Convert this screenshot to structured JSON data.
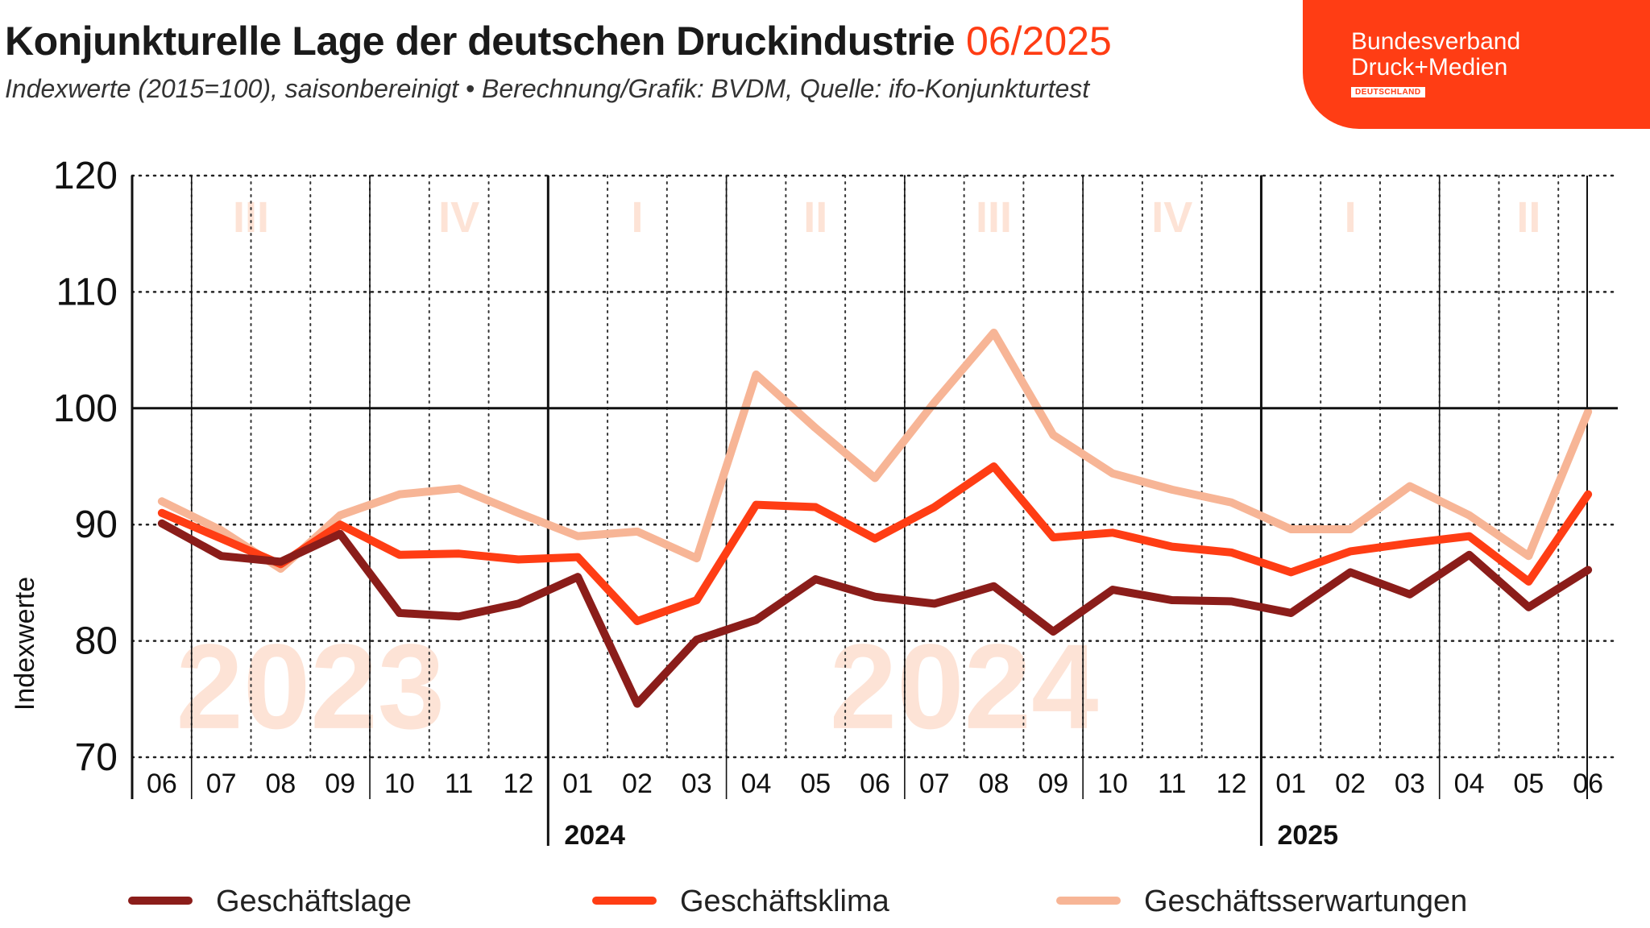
{
  "header": {
    "title": "Konjunkturelle Lage der deutschen Druckindustrie",
    "date": "06/2025",
    "subtitle": "Indexwerte (2015=100), saisonbereinigt • Berechnung/Grafik: BVDM, Quelle: ifo-Konjunkturtest"
  },
  "brand": {
    "line1": "Bundesverband",
    "line2": "Druck+Medien",
    "sub": "DEUTSCHLAND",
    "color": "#ff3d14"
  },
  "chart_data": {
    "type": "line",
    "ylabel": "Indexwerte",
    "ylim": [
      70,
      120
    ],
    "yticks": [
      70,
      80,
      90,
      100,
      110,
      120
    ],
    "reference_line": 100,
    "categories": [
      "06",
      "07",
      "08",
      "09",
      "10",
      "11",
      "12",
      "01",
      "02",
      "03",
      "04",
      "05",
      "06",
      "07",
      "08",
      "09",
      "10",
      "11",
      "12",
      "01",
      "02",
      "03",
      "04",
      "05",
      "06"
    ],
    "year_labels": [
      {
        "label": "2024",
        "start_index": 7
      },
      {
        "label": "2025",
        "start_index": 19
      }
    ],
    "watermark_years": [
      {
        "label": "2023",
        "center_index": 2
      },
      {
        "label": "2024",
        "center_index": 13
      }
    ],
    "quarters": [
      {
        "label": "III",
        "from": 0,
        "to": 3
      },
      {
        "label": "IV",
        "from": 4,
        "to": 6
      },
      {
        "label": "I",
        "from": 7,
        "to": 9
      },
      {
        "label": "II",
        "from": 10,
        "to": 12
      },
      {
        "label": "III",
        "from": 13,
        "to": 15
      },
      {
        "label": "IV",
        "from": 16,
        "to": 18
      },
      {
        "label": "I",
        "from": 19,
        "to": 21
      },
      {
        "label": "II",
        "from": 22,
        "to": 24
      }
    ],
    "grid": true,
    "legend_position": "bottom",
    "series": [
      {
        "name": "Geschäftsserwartungen",
        "color": "#f7b596",
        "values": [
          92,
          89.5,
          86.2,
          90.8,
          92.6,
          93.1,
          91,
          89,
          89.4,
          87.1,
          102.9,
          98.3,
          94,
          100.5,
          106.5,
          97.7,
          94.4,
          93,
          91.9,
          89.6,
          89.6,
          93.3,
          90.8,
          87.3,
          99.7
        ]
      },
      {
        "name": "Geschäftsklima",
        "color": "#ff3d14",
        "values": [
          91,
          88.8,
          86.6,
          90,
          87.4,
          87.5,
          87,
          87.2,
          81.7,
          83.5,
          91.7,
          91.5,
          88.8,
          91.5,
          95,
          88.9,
          89.3,
          88.1,
          87.6,
          85.9,
          87.7,
          88.4,
          89,
          85.1,
          92.6
        ]
      },
      {
        "name": "Geschäftslage",
        "color": "#8b1d1a",
        "values": [
          90.1,
          87.3,
          86.8,
          89.2,
          82.4,
          82.1,
          83.2,
          85.5,
          74.6,
          80.1,
          81.8,
          85.3,
          83.8,
          83.2,
          84.7,
          80.8,
          84.4,
          83.5,
          83.4,
          82.4,
          85.9,
          84,
          87.4,
          82.9,
          86.1
        ]
      }
    ],
    "legend_order": [
      "Geschäftslage",
      "Geschäftsklima",
      "Geschäftsserwartungen"
    ]
  },
  "style": {
    "watermark_color": "#fde3d6",
    "axis_color": "#111111"
  }
}
